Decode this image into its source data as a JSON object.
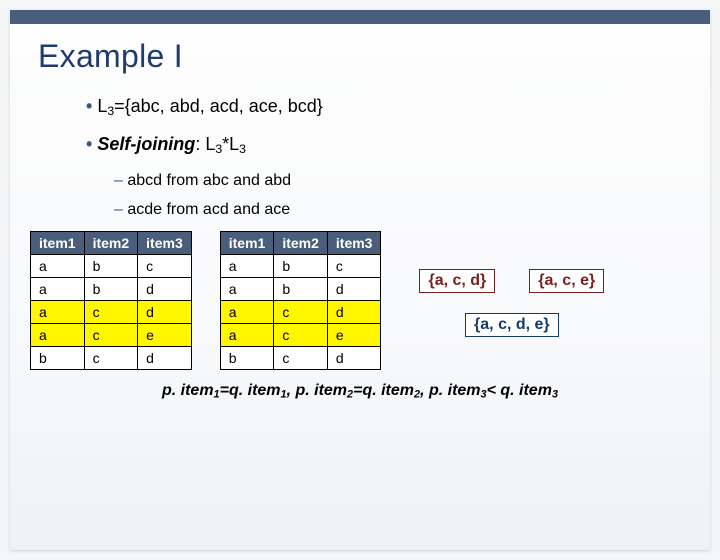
{
  "title": "Example I",
  "bullets": {
    "b1a_pre": "L",
    "b1a_sub": "3",
    "b1a_post": "={abc, abd, acd, ace, bcd}",
    "b1b_pre": "Self-joining",
    "b1b_mid": ": L",
    "b1b_sub1": "3",
    "b1b_star": "*L",
    "b1b_sub2": "3",
    "b2a": "abcd  from abc and abd",
    "b2b": "acde  from acd and ace"
  },
  "table": {
    "cols": [
      "item1",
      "item2",
      "item3"
    ],
    "rows_left": [
      {
        "c": [
          "a",
          "b",
          "c"
        ],
        "hl": false
      },
      {
        "c": [
          "a",
          "b",
          "d"
        ],
        "hl": false
      },
      {
        "c": [
          "a",
          "c",
          "d"
        ],
        "hl": true
      },
      {
        "c": [
          "a",
          "c",
          "e"
        ],
        "hl": true
      },
      {
        "c": [
          "b",
          "c",
          "d"
        ],
        "hl": false
      }
    ],
    "rows_right": [
      {
        "c": [
          "a",
          "b",
          "c"
        ],
        "hl": false
      },
      {
        "c": [
          "a",
          "b",
          "d"
        ],
        "hl": false
      },
      {
        "c": [
          "a",
          "c",
          "d"
        ],
        "hl": true
      },
      {
        "c": [
          "a",
          "c",
          "e"
        ],
        "hl": true
      },
      {
        "c": [
          "b",
          "c",
          "d"
        ],
        "hl": false
      }
    ]
  },
  "sets": {
    "top_left": "{a, c, d}",
    "top_right": "{a, c, e}",
    "bottom": "{a, c, d, e}"
  },
  "caption": {
    "p1a": "p. item",
    "p1s": "1",
    "p1b": "=q. item",
    "p1s2": "1",
    "p2a": ", p. item",
    "p2s": "2",
    "p2b": "=q. item",
    "p2s2": "2",
    "p3a": ", p. item",
    "p3s": "3",
    "p3b": "< q. item",
    "p3s2": "3"
  }
}
